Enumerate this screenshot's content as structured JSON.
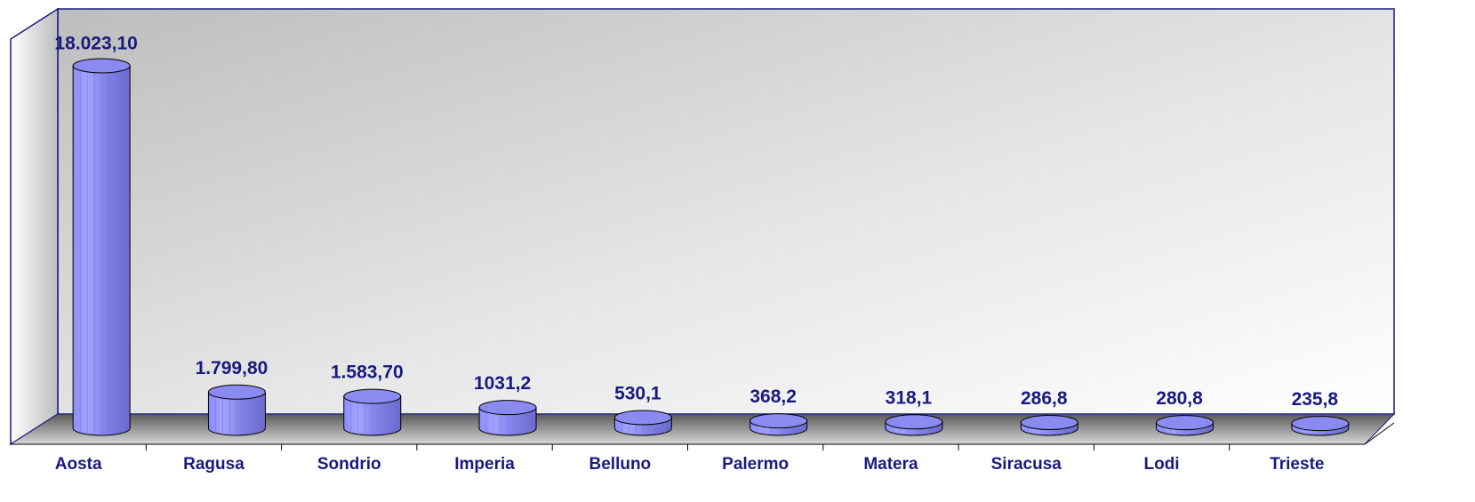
{
  "chart_data": {
    "type": "bar",
    "categories": [
      "Aosta",
      "Ragusa",
      "Sondrio",
      "Imperia",
      "Belluno",
      "Palermo",
      "Matera",
      "Siracusa",
      "Lodi",
      "Trieste"
    ],
    "values": [
      18023.1,
      1799.8,
      1583.7,
      1031.2,
      530.1,
      368.2,
      318.1,
      286.8,
      280.8,
      235.8
    ],
    "value_labels": [
      "18.023,10",
      "1.799,80",
      "1.583,70",
      "1031,2",
      "530,1",
      "368,2",
      "318,1",
      "286,8",
      "280,8",
      "235,8"
    ],
    "color": "#9999ff"
  }
}
